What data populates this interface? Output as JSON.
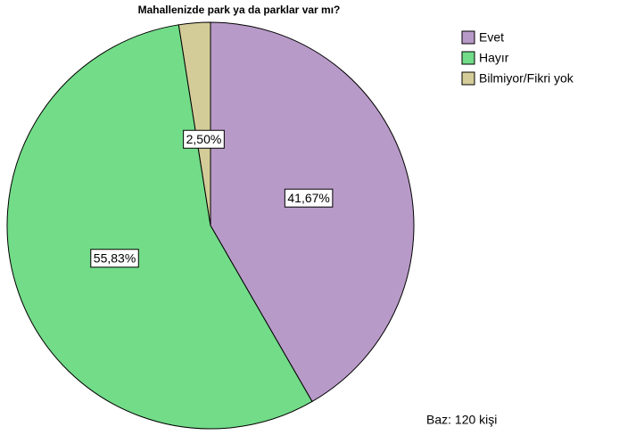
{
  "chart_data": {
    "type": "pie",
    "title": "Mahallenizde park ya da parklar var mı?",
    "categories": [
      "Evet",
      "Hayır",
      "Bilmiyor/Fikri yok"
    ],
    "values": [
      41.67,
      55.83,
      2.5
    ],
    "value_labels": [
      "41,67%",
      "55,83%",
      "2,50%"
    ],
    "colors": [
      "#b89ac8",
      "#72dc88",
      "#d4cc98"
    ],
    "legend": "top-right",
    "annotation": "Baz: 120 kişi"
  }
}
